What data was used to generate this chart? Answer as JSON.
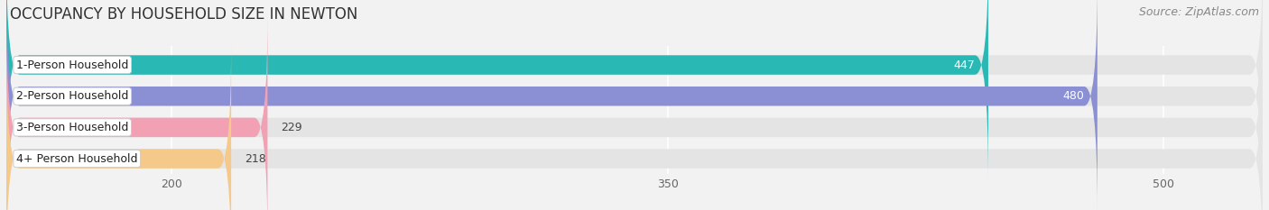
{
  "title": "OCCUPANCY BY HOUSEHOLD SIZE IN NEWTON",
  "source": "Source: ZipAtlas.com",
  "categories": [
    "1-Person Household",
    "2-Person Household",
    "3-Person Household",
    "4+ Person Household"
  ],
  "values": [
    447,
    480,
    229,
    218
  ],
  "bar_colors": [
    "#29b8b4",
    "#8b8fd4",
    "#f2a0b4",
    "#f5c98a"
  ],
  "xlim_min": 150,
  "xlim_max": 530,
  "xticks": [
    200,
    350,
    500
  ],
  "background_color": "#f2f2f2",
  "bar_bg_color": "#e4e4e4",
  "title_fontsize": 12,
  "source_fontsize": 9,
  "label_fontsize": 9,
  "value_fontsize": 9,
  "tick_fontsize": 9,
  "value_threshold": 350
}
